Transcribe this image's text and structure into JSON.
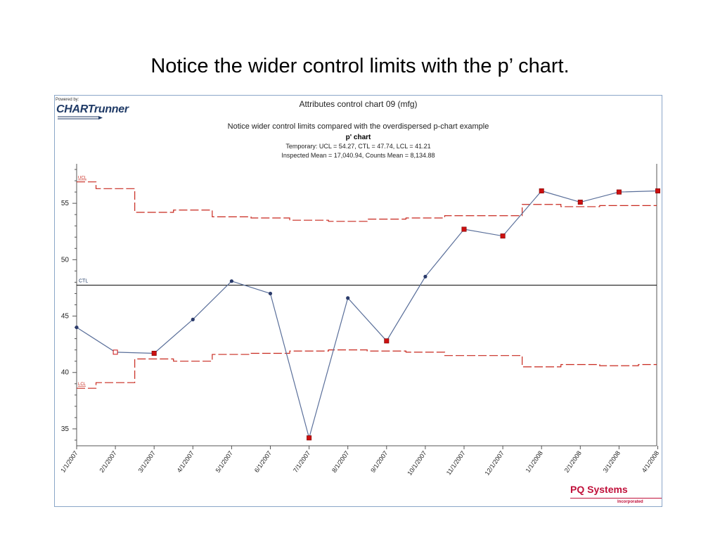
{
  "slide": {
    "title": "Notice the wider control limits with the p’ chart."
  },
  "branding": {
    "powered_by": "Powered by:",
    "logo_text": "CHARTrunner",
    "vendor_name": "PQ Systems",
    "vendor_sub": "Incorporated"
  },
  "colors": {
    "limit_line": "#c8281e",
    "center_line": "#000000",
    "data_line": "#5a6f9a",
    "marker_normal": "#2b3b6b",
    "marker_signal": "#cc1010",
    "frame_border": "#8aa6c8",
    "vendor": "#c0103a"
  },
  "chart_data": {
    "type": "line",
    "title": "Attributes control chart 09 (mfg)",
    "subtitle": "Notice wider control limits compared with the overdispersed p-chart example",
    "chart_name": "p' chart",
    "stats_line1": "Temporary: UCL = 54.27, CTL = 47.74, LCL = 41.21",
    "stats_line2": "Inspected Mean = 17,040.94, Counts Mean = 8,134.88",
    "xlabel": "",
    "ylabel": "",
    "ylim": [
      33.5,
      58.5
    ],
    "yticks": [
      35,
      40,
      45,
      50,
      55
    ],
    "grid": false,
    "categories": [
      "1/1/2007",
      "2/1/2007",
      "3/1/2007",
      "4/1/2007",
      "5/1/2007",
      "6/1/2007",
      "7/1/2007",
      "8/1/2007",
      "9/1/2007",
      "10/1/2007",
      "11/1/2007",
      "12/1/2007",
      "1/1/2008",
      "2/1/2008",
      "3/1/2008",
      "4/1/2008"
    ],
    "series": [
      {
        "values": [
          44.0,
          41.8,
          41.7,
          44.7,
          48.1,
          47.0,
          34.2,
          46.6,
          42.8,
          48.5,
          52.7,
          52.1,
          56.1,
          55.1,
          56.0,
          56.1
        ],
        "markers": [
          "normal",
          "hollow-signal",
          "signal",
          "normal",
          "normal",
          "normal",
          "signal",
          "normal",
          "signal",
          "normal",
          "signal",
          "signal",
          "signal",
          "signal",
          "signal",
          "signal"
        ]
      }
    ],
    "center_line": {
      "label": "CTL",
      "value": 47.74
    },
    "ucl": {
      "label": "UCL",
      "values": [
        56.9,
        56.3,
        54.2,
        54.4,
        53.8,
        53.7,
        53.5,
        53.4,
        53.6,
        53.7,
        53.9,
        53.9,
        54.9,
        54.7,
        54.8,
        54.8
      ]
    },
    "lcl": {
      "label": "LCL",
      "values": [
        38.6,
        39.1,
        41.2,
        41.0,
        41.6,
        41.7,
        41.9,
        42.0,
        41.9,
        41.8,
        41.5,
        41.5,
        40.5,
        40.7,
        40.6,
        40.7
      ]
    }
  }
}
